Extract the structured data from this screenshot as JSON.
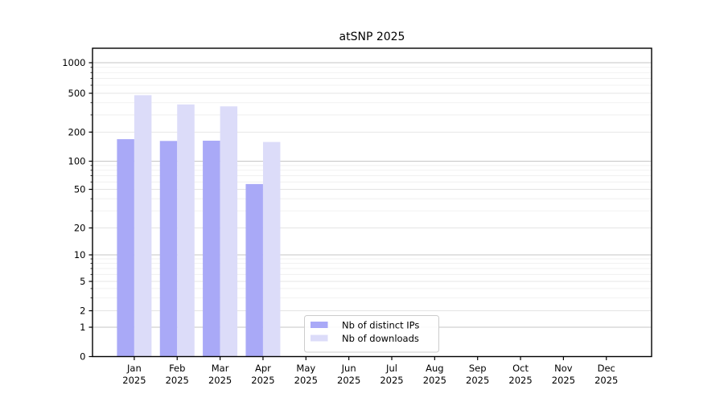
{
  "chart_data": {
    "type": "bar",
    "title": "atSNP 2025",
    "x_categories": [
      "Jan",
      "Feb",
      "Mar",
      "Apr",
      "May",
      "Jun",
      "Jul",
      "Aug",
      "Sep",
      "Oct",
      "Nov",
      "Dec"
    ],
    "x_sublabel": "2025",
    "y_ticks": [
      0,
      1,
      2,
      5,
      10,
      20,
      50,
      100,
      200,
      500,
      1000
    ],
    "y_scale": "symlog",
    "ylim": [
      0,
      1400
    ],
    "grid": true,
    "legend_position": "lower center",
    "series": [
      {
        "name": "Nb of distinct IPs",
        "color": "#a9a9f7",
        "values": [
          169,
          162,
          163,
          57,
          null,
          null,
          null,
          null,
          null,
          null,
          null,
          null
        ]
      },
      {
        "name": "Nb of downloads",
        "color": "#dcdcf9",
        "values": [
          478,
          384,
          367,
          158,
          null,
          null,
          null,
          null,
          null,
          null,
          null,
          null
        ]
      }
    ]
  }
}
